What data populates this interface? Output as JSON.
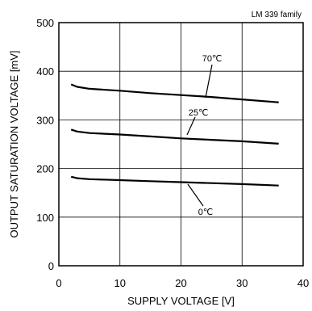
{
  "chart_data": {
    "type": "line",
    "annotation": "LM 339 family",
    "xlabel": "SUPPLY VOLTAGE [V]",
    "ylabel": "OUTPUT SATURATION VOLTAGE [mV]",
    "xlim": [
      0,
      40
    ],
    "ylim": [
      0,
      500
    ],
    "xticks": [
      0,
      10,
      20,
      30,
      40
    ],
    "yticks": [
      0,
      100,
      200,
      300,
      400,
      500
    ],
    "grid": true,
    "series": [
      {
        "name": "70℃",
        "x": [
          2,
          3,
          5,
          10,
          15,
          20,
          25,
          30,
          36
        ],
        "y": [
          373,
          368,
          364,
          360,
          355,
          351,
          347,
          342,
          336
        ]
      },
      {
        "name": "25℃",
        "x": [
          2,
          3,
          5,
          10,
          15,
          20,
          25,
          30,
          36
        ],
        "y": [
          280,
          276,
          273,
          270,
          266,
          262,
          259,
          256,
          251
        ]
      },
      {
        "name": "0℃",
        "x": [
          2,
          3,
          5,
          10,
          15,
          20,
          25,
          30,
          36
        ],
        "y": [
          183,
          180,
          178,
          176,
          174,
          172,
          170,
          168,
          165
        ]
      }
    ]
  }
}
